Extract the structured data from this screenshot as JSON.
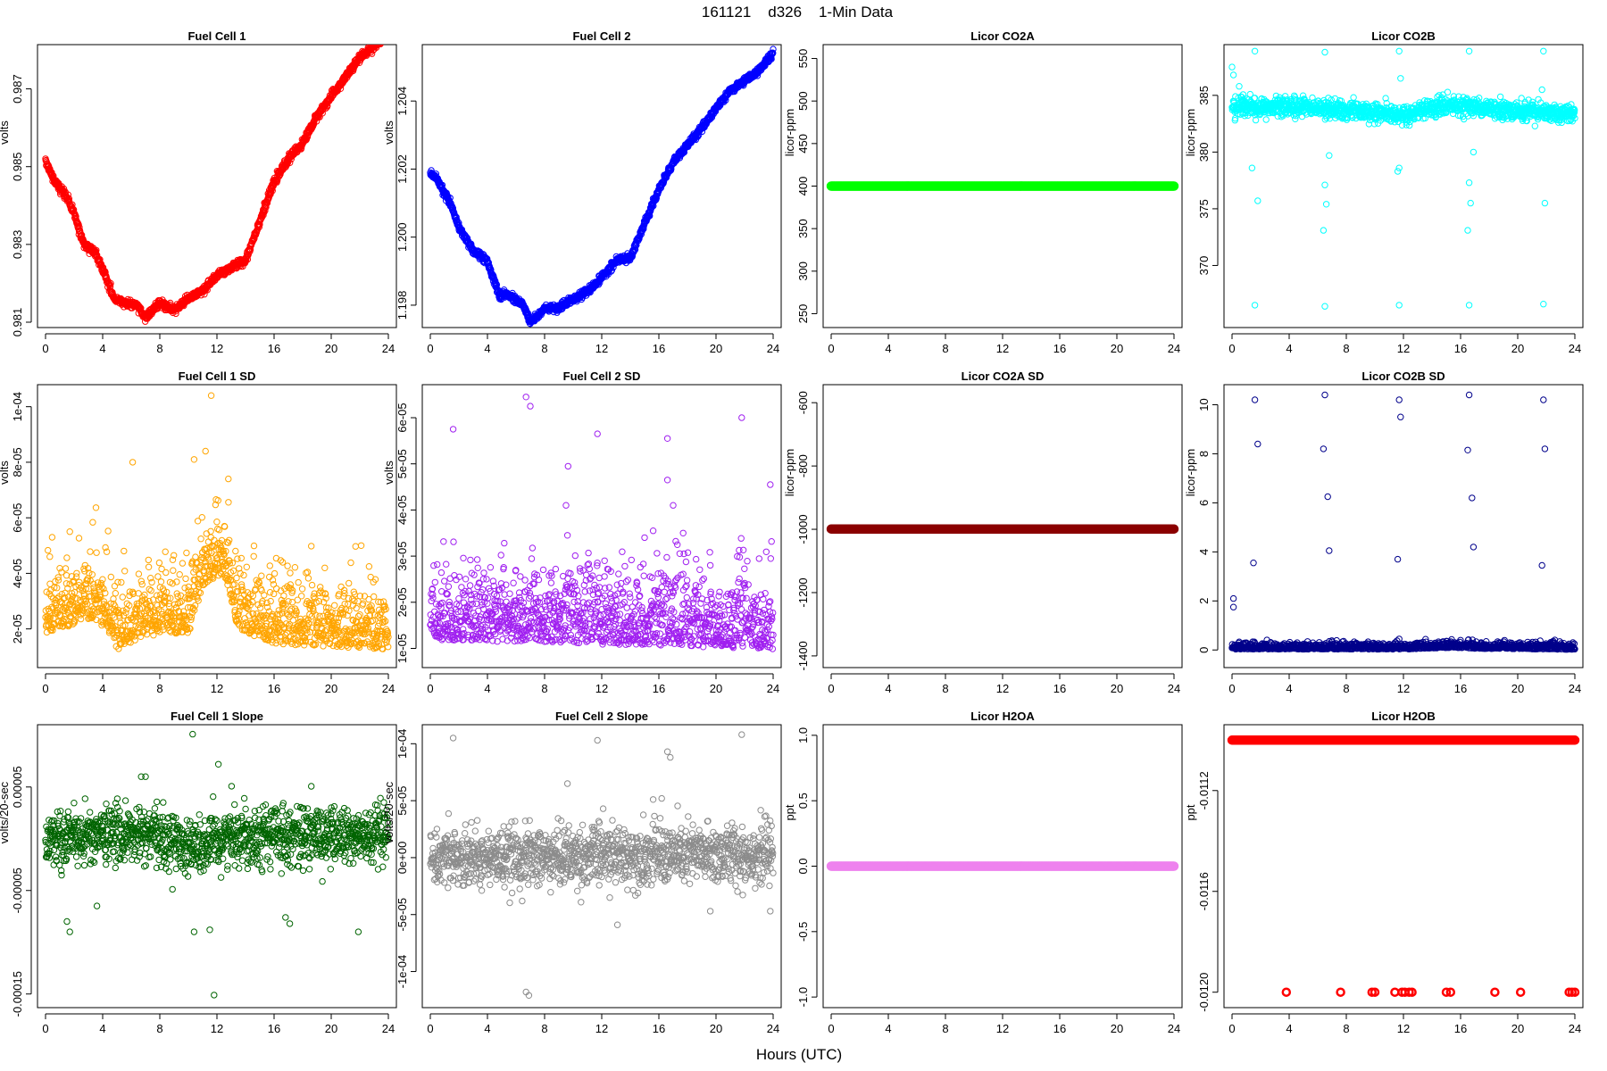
{
  "figure": {
    "title": "161121    d326    1-Min Data",
    "xlabel": "Hours (UTC)"
  },
  "chart_data": [
    {
      "id": "p1",
      "type": "scatter",
      "title": "Fuel Cell 1",
      "ylabel": "volts",
      "color": "#ff0000",
      "xticks": [
        0,
        4,
        8,
        12,
        16,
        20,
        24
      ],
      "xlim": [
        0,
        24
      ],
      "yticks": [
        0.981,
        0.983,
        0.985,
        0.987
      ],
      "ytick_labels": [
        "0.981",
        "0.983",
        "0.985",
        "0.987"
      ],
      "ylim": [
        0.981,
        0.988
      ],
      "gen": "path",
      "n": 1400,
      "noise": 5e-05,
      "pts": [
        [
          0,
          0.9852
        ],
        [
          0.5,
          0.9847
        ],
        [
          1.5,
          0.9842
        ],
        [
          2,
          0.9838
        ],
        [
          2.7,
          0.983
        ],
        [
          3.5,
          0.9828
        ],
        [
          4.2,
          0.9822
        ],
        [
          4.8,
          0.9816
        ],
        [
          5.5,
          0.9815
        ],
        [
          6.5,
          0.9814
        ],
        [
          7,
          0.9811
        ],
        [
          7.5,
          0.9813
        ],
        [
          8,
          0.9815
        ],
        [
          9,
          0.9813
        ],
        [
          10,
          0.9816
        ],
        [
          11,
          0.9818
        ],
        [
          12,
          0.9822
        ],
        [
          13,
          0.9824
        ],
        [
          14,
          0.9826
        ],
        [
          15,
          0.9836
        ],
        [
          16,
          0.9846
        ],
        [
          17,
          0.9852
        ],
        [
          18,
          0.9856
        ],
        [
          19,
          0.9863
        ],
        [
          20,
          0.9868
        ],
        [
          21,
          0.9873
        ],
        [
          22,
          0.9878
        ],
        [
          23,
          0.9881
        ],
        [
          24,
          0.9884
        ]
      ]
    },
    {
      "id": "p2",
      "type": "scatter",
      "title": "Fuel Cell 2",
      "ylabel": "volts",
      "color": "#0000ff",
      "xticks": [
        0,
        4,
        8,
        12,
        16,
        20,
        24
      ],
      "xlim": [
        0,
        24
      ],
      "yticks": [
        1.198,
        1.2,
        1.202,
        1.204
      ],
      "ytick_labels": [
        "1.198",
        "1.200",
        "1.202",
        "1.204"
      ],
      "ylim": [
        1.1975,
        1.2055
      ],
      "gen": "path",
      "n": 1400,
      "noise": 5e-05,
      "pts": [
        [
          0,
          1.2019
        ],
        [
          0.5,
          1.2017
        ],
        [
          1.5,
          1.2009
        ],
        [
          2,
          1.2003
        ],
        [
          3,
          1.1996
        ],
        [
          4,
          1.1993
        ],
        [
          4.8,
          1.1983
        ],
        [
          5.5,
          1.1983
        ],
        [
          6.5,
          1.198
        ],
        [
          7,
          1.1975
        ],
        [
          7.5,
          1.1977
        ],
        [
          8,
          1.1979
        ],
        [
          9,
          1.1979
        ],
        [
          10,
          1.1982
        ],
        [
          11,
          1.1984
        ],
        [
          12,
          1.1988
        ],
        [
          13,
          1.1993
        ],
        [
          14,
          1.1994
        ],
        [
          15,
          1.2004
        ],
        [
          16,
          1.2014
        ],
        [
          17,
          1.2022
        ],
        [
          18,
          1.2027
        ],
        [
          19,
          1.2032
        ],
        [
          20,
          1.2038
        ],
        [
          21,
          1.2043
        ],
        [
          22,
          1.2046
        ],
        [
          23,
          1.2049
        ],
        [
          24,
          1.2054
        ]
      ]
    },
    {
      "id": "p3",
      "type": "scatter",
      "title": "Licor CO2A",
      "ylabel": "licor-ppm",
      "color": "#00ff00",
      "xticks": [
        0,
        4,
        8,
        12,
        16,
        20,
        24
      ],
      "xlim": [
        0,
        24
      ],
      "yticks": [
        250,
        300,
        350,
        400,
        450,
        500,
        550
      ],
      "ytick_labels": [
        "250",
        "300",
        "350",
        "400",
        "450",
        "500",
        "550"
      ],
      "ylim": [
        240,
        560
      ],
      "gen": "const",
      "n": 500,
      "y": 400,
      "r": 4
    },
    {
      "id": "p4",
      "type": "scatter",
      "title": "Licor CO2B",
      "ylabel": "licor-ppm",
      "color": "#00ffff",
      "xticks": [
        0,
        4,
        8,
        12,
        16,
        20,
        24
      ],
      "xlim": [
        0,
        24
      ],
      "yticks": [
        370,
        375,
        380,
        385
      ],
      "ytick_labels": [
        "370",
        "375",
        "380",
        "385"
      ],
      "ylim": [
        365,
        389
      ],
      "gen": "band",
      "n": 1400,
      "base": 383.8,
      "spread": 0.4,
      "drift": [
        [
          0,
          384
        ],
        [
          6,
          383.9
        ],
        [
          12,
          383.3
        ],
        [
          15,
          384.1
        ],
        [
          18,
          383.8
        ],
        [
          24,
          383.4
        ]
      ],
      "extra": [
        [
          1.6,
          388.9
        ],
        [
          1.6,
          366.5
        ],
        [
          1.4,
          378.6
        ],
        [
          1.8,
          375.7
        ],
        [
          6.5,
          388.8
        ],
        [
          6.5,
          366.4
        ],
        [
          6.4,
          373.1
        ],
        [
          6.5,
          377.1
        ],
        [
          6.6,
          375.4
        ],
        [
          6.8,
          379.7
        ],
        [
          11.7,
          388.9
        ],
        [
          11.7,
          366.5
        ],
        [
          11.8,
          386.5
        ],
        [
          11.6,
          378.3
        ],
        [
          11.7,
          378.6
        ],
        [
          16.6,
          388.9
        ],
        [
          16.6,
          366.5
        ],
        [
          16.5,
          373.1
        ],
        [
          16.6,
          377.3
        ],
        [
          16.7,
          375.5
        ],
        [
          16.9,
          380
        ],
        [
          21.8,
          388.9
        ],
        [
          21.8,
          366.6
        ],
        [
          21.9,
          375.5
        ],
        [
          21.7,
          385.5
        ],
        [
          0,
          387.5
        ],
        [
          0.1,
          386.8
        ],
        [
          0.5,
          385.8
        ]
      ]
    },
    {
      "id": "p5",
      "type": "scatter",
      "title": "Fuel Cell 1 SD",
      "ylabel": "volts",
      "color": "#ffa500",
      "xticks": [
        0,
        4,
        8,
        12,
        16,
        20,
        24
      ],
      "xlim": [
        0,
        24
      ],
      "yticks": [
        2e-05,
        4e-05,
        6e-05,
        8e-05,
        0.0001
      ],
      "ytick_labels": [
        "2e-05",
        "4e-05",
        "6e-05",
        "8e-05",
        "1e-04"
      ],
      "ylim": [
        8e-06,
        0.000106
      ],
      "gen": "band",
      "n": 1300,
      "base": 1.7e-05,
      "spread": 6e-06,
      "skew": 1.8,
      "drift": [
        [
          0,
          2.1e-05
        ],
        [
          3.5,
          2.6e-05
        ],
        [
          5,
          1.5e-05
        ],
        [
          8,
          2.1e-05
        ],
        [
          10,
          2e-05
        ],
        [
          11,
          3.8e-05
        ],
        [
          12.5,
          4.2e-05
        ],
        [
          13.5,
          2.2e-05
        ],
        [
          16,
          1.7e-05
        ],
        [
          20,
          1.6e-05
        ],
        [
          24,
          1.5e-05
        ]
      ],
      "extra": [
        [
          11.6,
          0.000104
        ],
        [
          6.1,
          8e-05
        ],
        [
          11.2,
          8.4e-05
        ],
        [
          10.4,
          8.1e-05
        ],
        [
          12.8,
          7.4e-05
        ],
        [
          1.7,
          5.5e-05
        ],
        [
          22.1,
          5e-05
        ],
        [
          0.3,
          4.6e-05
        ],
        [
          16.6,
          4.4e-05
        ]
      ]
    },
    {
      "id": "p6",
      "type": "scatter",
      "title": "Fuel Cell 2 SD",
      "ylabel": "volts",
      "color": "#a020f0",
      "xticks": [
        0,
        4,
        8,
        12,
        16,
        20,
        24
      ],
      "xlim": [
        0,
        24
      ],
      "yticks": [
        1e-05,
        2e-05,
        3e-05,
        4e-05,
        5e-05,
        6e-05
      ],
      "ytick_labels": [
        "1e-05",
        "2e-05",
        "3e-05",
        "4e-05",
        "5e-05",
        "6e-05"
      ],
      "ylim": [
        7e-06,
        6.6e-05
      ],
      "gen": "band",
      "n": 1300,
      "base": 1.05e-05,
      "spread": 4e-06,
      "skew": 2.0,
      "drift": [
        [
          0,
          1.35e-05
        ],
        [
          12,
          1.25e-05
        ],
        [
          24,
          1.15e-05
        ]
      ],
      "extra": [
        [
          6.7,
          6.45e-05
        ],
        [
          7,
          6.25e-05
        ],
        [
          1.6,
          5.75e-05
        ],
        [
          11.7,
          5.65e-05
        ],
        [
          16.6,
          5.55e-05
        ],
        [
          21.8,
          6e-05
        ],
        [
          9.6,
          3.45e-05
        ],
        [
          9.5,
          4.1e-05
        ],
        [
          15,
          3.4e-05
        ],
        [
          15.6,
          3.55e-05
        ],
        [
          16.6,
          4.65e-05
        ],
        [
          17,
          4.1e-05
        ],
        [
          17.7,
          3.5e-05
        ],
        [
          19.6,
          2.8e-05
        ],
        [
          23.8,
          4.55e-05
        ],
        [
          12.2,
          2.9e-05
        ]
      ]
    },
    {
      "id": "p7",
      "type": "scatter",
      "title": "Licor CO2A SD",
      "ylabel": "licor-ppm",
      "color": "#8b0000",
      "xticks": [
        0,
        4,
        8,
        12,
        16,
        20,
        24
      ],
      "xlim": [
        0,
        24
      ],
      "yticks": [
        -1400,
        -1200,
        -1000,
        -800,
        -600
      ],
      "ytick_labels": [
        "-1400",
        "-1200",
        "-1000",
        "-800",
        "-600"
      ],
      "ylim": [
        -1420,
        -560
      ],
      "gen": "const",
      "n": 500,
      "y": -999,
      "r": 4
    },
    {
      "id": "p8",
      "type": "scatter",
      "title": "Licor CO2B SD",
      "ylabel": "licor-ppm",
      "color": "#00008b",
      "xticks": [
        0,
        4,
        8,
        12,
        16,
        20,
        24
      ],
      "xlim": [
        0,
        24
      ],
      "yticks": [
        0,
        2,
        4,
        6,
        8,
        10
      ],
      "ytick_labels": [
        "0",
        "2",
        "4",
        "6",
        "8",
        "10"
      ],
      "ylim": [
        -0.5,
        10.6
      ],
      "gen": "band",
      "n": 1200,
      "base": 0.02,
      "spread": 0.05,
      "skew": 2.5,
      "drift": [
        [
          0,
          0.05
        ],
        [
          12,
          0.05
        ],
        [
          15.5,
          0.12
        ],
        [
          17,
          0.08
        ],
        [
          24,
          0.04
        ]
      ],
      "extra": [
        [
          1.6,
          10.2
        ],
        [
          1.8,
          8.4
        ],
        [
          1.5,
          3.55
        ],
        [
          0.1,
          2.1
        ],
        [
          0.1,
          1.75
        ],
        [
          6.5,
          10.4
        ],
        [
          6.4,
          8.2
        ],
        [
          6.7,
          6.25
        ],
        [
          6.8,
          4.05
        ],
        [
          11.7,
          10.2
        ],
        [
          11.8,
          9.5
        ],
        [
          11.6,
          3.7
        ],
        [
          16.6,
          10.4
        ],
        [
          16.5,
          8.15
        ],
        [
          16.8,
          6.2
        ],
        [
          16.9,
          4.2
        ],
        [
          21.8,
          10.2
        ],
        [
          21.9,
          8.2
        ],
        [
          21.7,
          3.45
        ],
        [
          11.7,
          0.45
        ]
      ]
    },
    {
      "id": "p9",
      "type": "scatter",
      "title": "Fuel Cell 1 Slope",
      "ylabel": "volts/20-sec",
      "color": "#006400",
      "xticks": [
        0,
        4,
        8,
        12,
        16,
        20,
        24
      ],
      "xlim": [
        0,
        24
      ],
      "yticks": [
        -0.00015,
        -5e-05,
        5e-05
      ],
      "ytick_labels": [
        "-0.00015",
        "-0.00005",
        "0.00005"
      ],
      "ylim": [
        -0.000158,
        0.000105
      ],
      "gen": "band",
      "n": 1300,
      "base": 0.0,
      "spread": 1.4e-05,
      "drift": [
        [
          0,
          -4e-06
        ],
        [
          4,
          5e-06
        ],
        [
          8,
          1e-06
        ],
        [
          11,
          -1e-05
        ],
        [
          13,
          4e-06
        ],
        [
          16,
          4e-06
        ],
        [
          24,
          1e-06
        ]
      ],
      "extra": [
        [
          10.3,
          0.000101
        ],
        [
          11.8,
          -0.000151
        ],
        [
          10.4,
          -9e-05
        ],
        [
          11.5,
          -8.8e-05
        ],
        [
          1.5,
          -8e-05
        ],
        [
          1.7,
          -9e-05
        ],
        [
          12.1,
          7.2e-05
        ],
        [
          16.8,
          -7.6e-05
        ],
        [
          17.1,
          -8.2e-05
        ],
        [
          21.9,
          -9e-05
        ],
        [
          6.7,
          6e-05
        ],
        [
          7,
          6e-05
        ],
        [
          16.6,
          3.2e-05
        ],
        [
          3.6,
          -6.5e-05
        ]
      ]
    },
    {
      "id": "p10",
      "type": "scatter",
      "title": "Fuel Cell 2 Slope",
      "ylabel": "volts/20-sec",
      "color": "#8c8c8c",
      "xticks": [
        0,
        4,
        8,
        12,
        16,
        20,
        24
      ],
      "xlim": [
        0,
        24
      ],
      "yticks": [
        -0.0001,
        -5e-05,
        0,
        5e-05,
        0.0001
      ],
      "ytick_labels": [
        "-1e-04",
        "-5e-05",
        "0e+00",
        "5e-05",
        "1e-04"
      ],
      "ylim": [
        -0.000127,
        0.000112
      ],
      "gen": "band",
      "n": 1300,
      "base": 0.0,
      "spread": 1.3e-05,
      "drift": [
        [
          0,
          -2e-06
        ],
        [
          12,
          2e-06
        ],
        [
          24,
          3e-06
        ]
      ],
      "extra": [
        [
          1.6,
          0.000105
        ],
        [
          11.7,
          0.000103
        ],
        [
          21.8,
          0.000108
        ],
        [
          16.6,
          9.3e-05
        ],
        [
          16.8,
          8.8e-05
        ],
        [
          9.6,
          6.5e-05
        ],
        [
          6.7,
          -0.000118
        ],
        [
          6.9,
          -0.000121
        ],
        [
          13.1,
          -5.9e-05
        ],
        [
          16.2,
          5.2e-05
        ],
        [
          15.6,
          5.1e-05
        ],
        [
          12.1,
          4.3e-05
        ],
        [
          23.8,
          -4.7e-05
        ],
        [
          19.6,
          -4.7e-05
        ]
      ]
    },
    {
      "id": "p11",
      "type": "scatter",
      "title": "Licor H2OA",
      "ylabel": "ppt",
      "color": "#ee82ee",
      "xticks": [
        0,
        4,
        8,
        12,
        16,
        20,
        24
      ],
      "xlim": [
        0,
        24
      ],
      "yticks": [
        -1,
        -0.5,
        0,
        0.5,
        1
      ],
      "ytick_labels": [
        "-1.0",
        "-0.5",
        "0.0",
        "0.5",
        "1.0"
      ],
      "ylim": [
        -1.04,
        1.04
      ],
      "gen": "const",
      "n": 500,
      "y": 0,
      "r": 4
    },
    {
      "id": "p12",
      "type": "scatter",
      "title": "Licor H2OB",
      "ylabel": "ppt",
      "color": "#ff0000",
      "xticks": [
        0,
        4,
        8,
        12,
        16,
        20,
        24
      ],
      "xlim": [
        0,
        24
      ],
      "yticks": [
        -0.012,
        -0.0116,
        -0.0112
      ],
      "ytick_labels": [
        "-0.0120",
        "-0.0116",
        "-0.0112"
      ],
      "ylim": [
        -0.01204,
        -0.01096
      ],
      "gen": "const",
      "n": 500,
      "y": -0.011,
      "r": 4,
      "extra": [
        [
          3.8,
          -0.012
        ],
        [
          7.6,
          -0.012
        ],
        [
          9.8,
          -0.012
        ],
        [
          10.0,
          -0.012
        ],
        [
          11.4,
          -0.012
        ],
        [
          11.9,
          -0.012
        ],
        [
          12.1,
          -0.012
        ],
        [
          12.4,
          -0.012
        ],
        [
          12.6,
          -0.012
        ],
        [
          15.0,
          -0.012
        ],
        [
          15.3,
          -0.012
        ],
        [
          18.4,
          -0.012
        ],
        [
          20.2,
          -0.012
        ],
        [
          23.6,
          -0.012
        ],
        [
          23.8,
          -0.012
        ],
        [
          24,
          -0.012
        ]
      ]
    }
  ]
}
